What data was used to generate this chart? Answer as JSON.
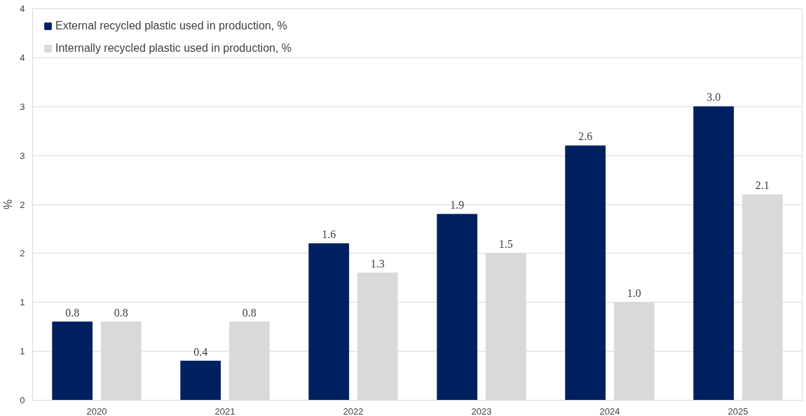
{
  "chart_data": {
    "type": "bar",
    "ylabel": "%",
    "categories": [
      "2020",
      "2021",
      "2022",
      "2023",
      "2024",
      "2025"
    ],
    "series": [
      {
        "name": "External recycled plastic used in production, %",
        "color": "#002060",
        "values": [
          0.8,
          0.4,
          1.6,
          1.9,
          2.6,
          3.0
        ],
        "value_labels": [
          "0.8",
          "0.4",
          "1.6",
          "1.9",
          "2.6",
          "3.0"
        ]
      },
      {
        "name": "Internally recycled plastic used in production, %",
        "color": "#d9d9d9",
        "values": [
          0.8,
          0.8,
          1.3,
          1.5,
          1.0,
          2.1
        ],
        "value_labels": [
          "0.8",
          "0.8",
          "1.3",
          "1.5",
          "1.0",
          "2.1"
        ]
      }
    ],
    "ylim": [
      0,
      4
    ],
    "yticks": [
      0,
      {
        "value": 0.5,
        "label": "1"
      },
      1,
      {
        "value": 1.5,
        "label": "2"
      },
      2,
      {
        "value": 2.5,
        "label": "3"
      },
      3,
      {
        "value": 3.5,
        "label": "4"
      },
      4
    ],
    "grid": "y",
    "legend": "top left"
  }
}
